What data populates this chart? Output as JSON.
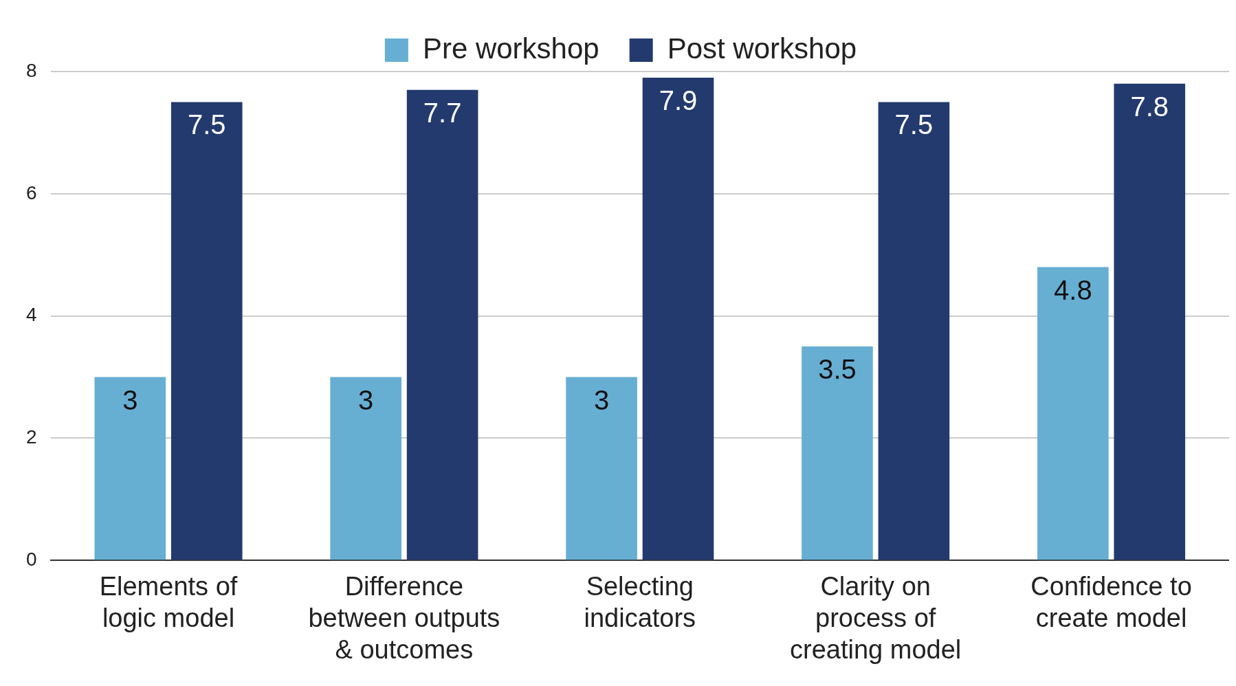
{
  "chart_data": {
    "type": "bar",
    "categories": [
      "Elements of logic model",
      "Difference between outputs & outcomes",
      "Selecting indicators",
      "Clarity on process of creating model",
      "Confidence to create model"
    ],
    "series": [
      {
        "name": "Pre workshop",
        "color": "#67aed3",
        "values": [
          3,
          3,
          3,
          3.5,
          4.8
        ]
      },
      {
        "name": "Post workshop",
        "color": "#233a6f",
        "values": [
          7.5,
          7.7,
          7.9,
          7.5,
          7.8
        ]
      }
    ],
    "ylim": [
      0,
      8
    ],
    "yticks": [
      0,
      2,
      4,
      6,
      8
    ],
    "grid": "y",
    "legend": "top",
    "data_labels": true
  }
}
